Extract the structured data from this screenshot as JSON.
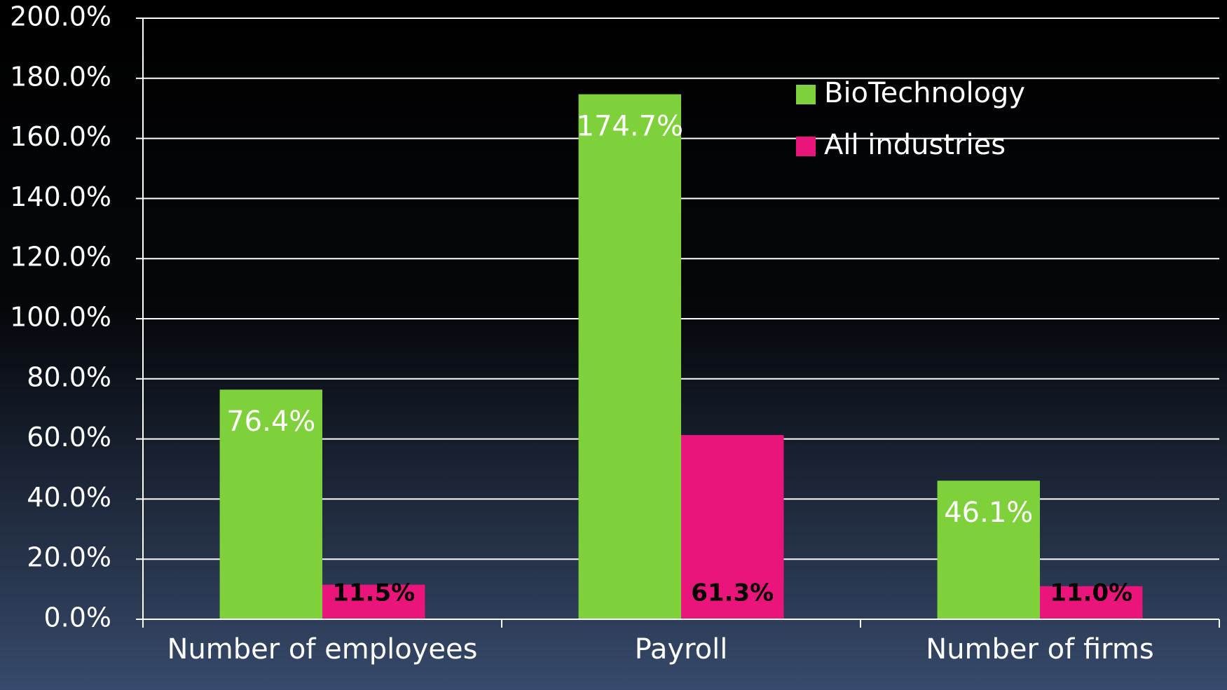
{
  "chart_data": {
    "type": "bar",
    "categories": [
      "Number of employees",
      "Payroll",
      "Number of firms"
    ],
    "series": [
      {
        "name": "BioTechnology",
        "color": "#7fd13b",
        "values": [
          76.4,
          174.7,
          46.1
        ],
        "value_labels": [
          "76.4%",
          "174.7%",
          "46.1%"
        ]
      },
      {
        "name": "All industries",
        "color": "#ea157a",
        "values": [
          11.5,
          61.3,
          11.0
        ],
        "value_labels": [
          "11.5%",
          "61.3%",
          "11.0%"
        ]
      }
    ],
    "ylim": [
      0,
      200
    ],
    "yticks": [
      {
        "value": 0,
        "label": "0.0%"
      },
      {
        "value": 20,
        "label": "20.0%"
      },
      {
        "value": 40,
        "label": "40.0%"
      },
      {
        "value": 60,
        "label": "60.0%"
      },
      {
        "value": 80,
        "label": "80.0%"
      },
      {
        "value": 100,
        "label": "100.0%"
      },
      {
        "value": 120,
        "label": "120.0%"
      },
      {
        "value": 140,
        "label": "140.0%"
      },
      {
        "value": 160,
        "label": "160.0%"
      },
      {
        "value": 180,
        "label": "180.0%"
      },
      {
        "value": 200,
        "label": "200.0%"
      }
    ],
    "grid": true
  }
}
